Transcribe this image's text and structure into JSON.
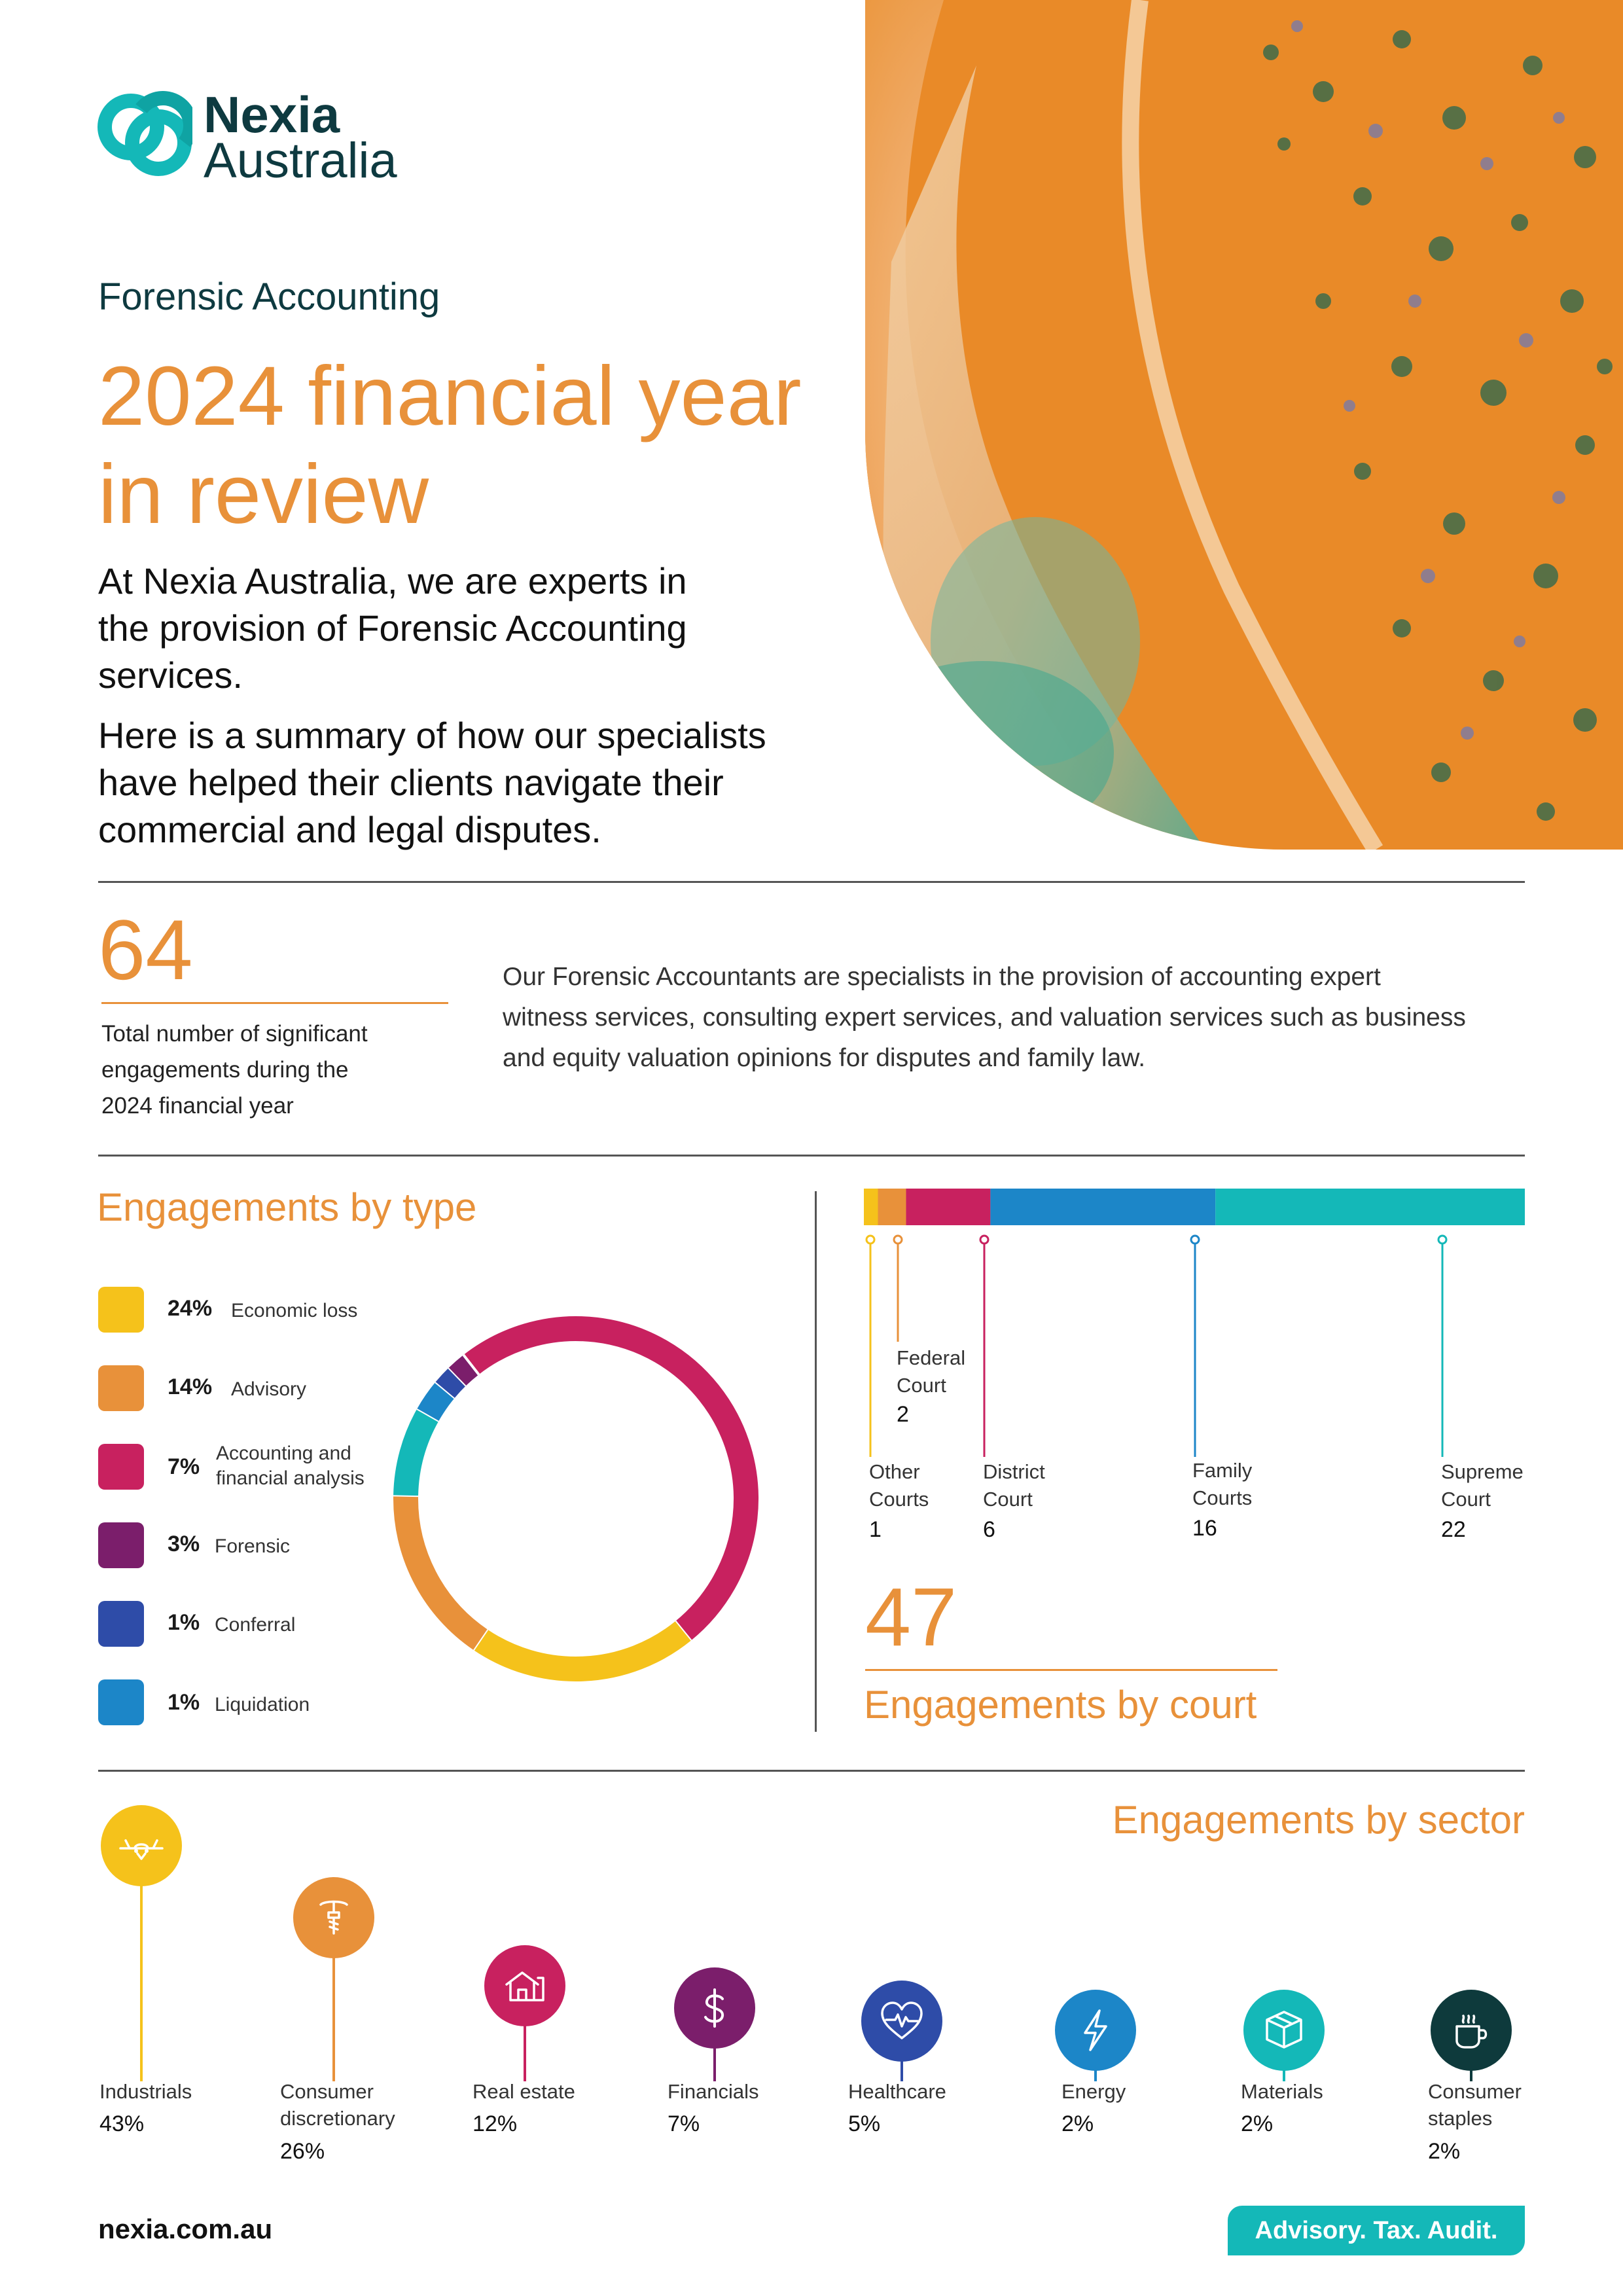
{
  "logo": {
    "line1": "Nexia",
    "line2": "Australia"
  },
  "header": {
    "eyebrow": "Forensic Accounting",
    "title_line1": "2024 financial year",
    "title_line2": "in review",
    "intro_lines": [
      "At Nexia Australia, we are experts in",
      "the provision of Forensic Accounting",
      "services."
    ],
    "summary_lines": [
      "Here is a summary of how our specialists",
      "have helped their clients navigate their",
      "commercial and legal disputes."
    ]
  },
  "total": {
    "value": "64",
    "caption_lines": [
      "Total number of significant",
      "engagements during the",
      "2024 financial year"
    ],
    "description_lines": [
      "Our Forensic Accountants are specialists in the provision of accounting expert",
      "witness services, consulting expert services, and valuation services such as business",
      "and equity valuation opinions for disputes and family law."
    ]
  },
  "by_type": {
    "title": "Engagements by type",
    "items": [
      {
        "pct": "24%",
        "label_lines": [
          "Economic loss"
        ],
        "color": "#F5C21B"
      },
      {
        "pct": "14%",
        "label_lines": [
          "Advisory"
        ],
        "color": "#E8913A"
      },
      {
        "pct": "7%",
        "label_lines": [
          "Accounting and",
          "financial analysis"
        ],
        "color": "#C8215F"
      },
      {
        "pct": "3%",
        "label_lines": [
          "Forensic"
        ],
        "color": "#7B1E6B"
      },
      {
        "pct": "1%",
        "label_lines": [
          "Conferral"
        ],
        "color": "#2E4CA8"
      },
      {
        "pct": "1%",
        "label_lines": [
          "Liquidation"
        ],
        "color": "#1C86C8"
      }
    ]
  },
  "by_court": {
    "total": "47",
    "title": "Engagements by court",
    "courts": [
      {
        "label_lines": [
          "Other",
          "Courts"
        ],
        "value": "1",
        "color": "#F5C21B"
      },
      {
        "label_lines": [
          "Federal",
          "Court"
        ],
        "value": "2",
        "color": "#E8913A"
      },
      {
        "label_lines": [
          "District",
          "Court"
        ],
        "value": "6",
        "color": "#C8215F"
      },
      {
        "label_lines": [
          "Family",
          "Courts"
        ],
        "value": "16",
        "color": "#1C86C8"
      },
      {
        "label_lines": [
          "Supreme",
          "Court"
        ],
        "value": "22",
        "color": "#14B8B8"
      }
    ]
  },
  "by_sector": {
    "title": "Engagements by sector",
    "sectors": [
      {
        "label_lines": [
          "Industrials"
        ],
        "value": "43%",
        "color": "#F5C21B",
        "icon": "airplane-icon"
      },
      {
        "label_lines": [
          "Consumer",
          "discretionary"
        ],
        "value": "26%",
        "color": "#E8913A",
        "icon": "corkscrew-icon"
      },
      {
        "label_lines": [
          "Real estate"
        ],
        "value": "12%",
        "color": "#C8215F",
        "icon": "house-icon"
      },
      {
        "label_lines": [
          "Financials"
        ],
        "value": "7%",
        "color": "#7B1E6B",
        "icon": "dollar-icon"
      },
      {
        "label_lines": [
          "Healthcare"
        ],
        "value": "5%",
        "color": "#2E4CA8",
        "icon": "heartbeat-icon"
      },
      {
        "label_lines": [
          "Energy"
        ],
        "value": "2%",
        "color": "#1C86C8",
        "icon": "lightning-icon"
      },
      {
        "label_lines": [
          "Materials"
        ],
        "value": "2%",
        "color": "#14B8B8",
        "icon": "box-icon"
      },
      {
        "label_lines": [
          "Consumer",
          "staples"
        ],
        "value": "2%",
        "color": "#0E3A3C",
        "icon": "coffee-cup-icon"
      }
    ]
  },
  "footer": {
    "url": "nexia.com.au",
    "tagline": "Advisory. Tax. Audit."
  },
  "colors": {
    "accent": "#E8913A",
    "teal": "#14B8B8",
    "navy": "#0E3A40"
  }
}
